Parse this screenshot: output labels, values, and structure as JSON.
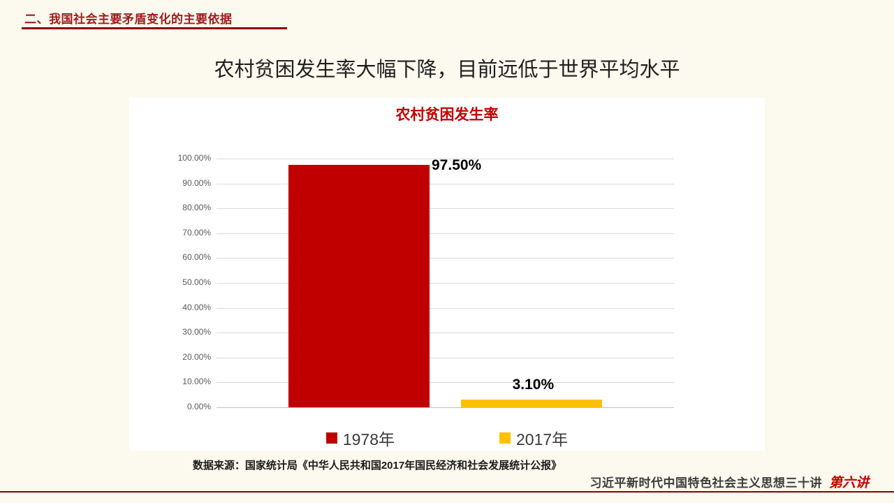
{
  "colors": {
    "background": "#FCF9EE",
    "accent_red": "#C00000",
    "header_red": "#9A1C1C",
    "rule_red": "#8B0000",
    "bar_red": "#C00000",
    "bar_yellow": "#FFC000"
  },
  "header": {
    "section_title": "二、我国社会主要矛盾变化的主要依据"
  },
  "slide": {
    "title": "农村贫困发生率大幅下降，目前远低于世界平均水平",
    "source_note": "数据来源：国家统计局《中华人民共和国2017年国民经济和社会发展统计公报》"
  },
  "footer": {
    "course_title": "习近平新时代中国特色社会主义思想三十讲",
    "lecture_label": "第六讲"
  },
  "chart_data": {
    "type": "bar",
    "title": "农村贫困发生率",
    "categories": [
      "1978年",
      "2017年"
    ],
    "values": [
      97.5,
      3.1
    ],
    "value_labels": [
      "97.50%",
      "3.10%"
    ],
    "y_ticks": [
      "100.00%",
      "90.00%",
      "80.00%",
      "70.00%",
      "60.00%",
      "50.00%",
      "40.00%",
      "30.00%",
      "20.00%",
      "10.00%",
      "0.00%"
    ],
    "ylim": [
      0,
      100
    ],
    "xlabel": "",
    "ylabel": "",
    "grid": true,
    "legend_position": "bottom",
    "bar_colors": [
      "#C00000",
      "#FFC000"
    ],
    "legend": [
      {
        "label": "1978年",
        "color": "#C00000"
      },
      {
        "label": "2017年",
        "color": "#FFC000"
      }
    ]
  }
}
